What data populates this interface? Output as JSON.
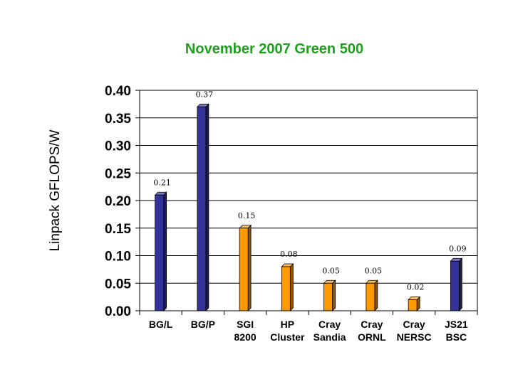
{
  "chart_data": {
    "type": "bar",
    "title": "November 2007 Green 500",
    "xlabel": "",
    "ylabel": "Linpack GFLOPS/W",
    "ylim": [
      0,
      0.4
    ],
    "yticks": [
      "0.40",
      "0.35",
      "0.30",
      "0.25",
      "0.20",
      "0.15",
      "0.10",
      "0.05",
      "0.00"
    ],
    "grid": true,
    "categories": [
      [
        "BG/L"
      ],
      [
        "BG/P"
      ],
      [
        "SGI",
        "8200"
      ],
      [
        "HP",
        "Cluster"
      ],
      [
        "Cray",
        "Sandia"
      ],
      [
        "Cray",
        "ORNL"
      ],
      [
        "Cray",
        "NERSC"
      ],
      [
        "JS21",
        "BSC"
      ]
    ],
    "values": [
      0.21,
      0.37,
      0.15,
      0.08,
      0.05,
      0.05,
      0.02,
      0.09
    ],
    "data_labels": [
      "0.21",
      "0.37",
      "0.15",
      "0.08",
      "0.05",
      "0.05",
      "0.02",
      "0.09"
    ],
    "bar_colors": [
      "#333399",
      "#333399",
      "#ff9900",
      "#ff9900",
      "#ff9900",
      "#ff9900",
      "#ff9900",
      "#333399"
    ]
  }
}
